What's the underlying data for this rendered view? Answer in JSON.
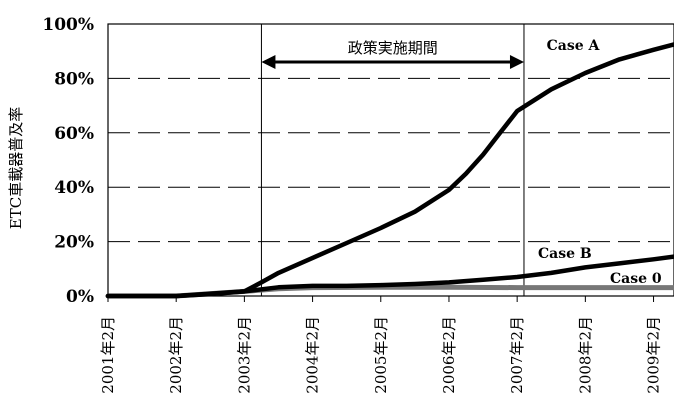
{
  "chart_data": {
    "type": "line",
    "ylabel": "ETC車載器普及率",
    "xlabel": "",
    "ylim": [
      0,
      100
    ],
    "y_ticks": [
      "0%",
      "20%",
      "40%",
      "60%",
      "80%",
      "100%"
    ],
    "x_ticks": [
      "2001年2月",
      "2002年2月",
      "2003年2月",
      "2004年2月",
      "2005年2月",
      "2006年2月",
      "2007年2月",
      "2008年2月",
      "2009年2月"
    ],
    "grid": "horizontal dashed",
    "x_unit": "year",
    "x_range": [
      2001.0,
      2009.3
    ],
    "policy_period": {
      "label": "政策実施期間",
      "start": 2003.25,
      "end": 2007.1
    },
    "series": [
      {
        "name": "Case A",
        "x": [
          2001.0,
          2002.0,
          2002.5,
          2003.0,
          2003.25,
          2003.5,
          2004.0,
          2004.5,
          2005.0,
          2005.5,
          2006.0,
          2006.25,
          2006.5,
          2006.75,
          2007.0,
          2007.25,
          2007.5,
          2008.0,
          2008.5,
          2009.0,
          2009.3
        ],
        "values": [
          0,
          0,
          0.7,
          1.7,
          5,
          8.5,
          14,
          19.5,
          25,
          31,
          39,
          45,
          52,
          60,
          68,
          72,
          76,
          82,
          87,
          90.5,
          92.5
        ]
      },
      {
        "name": "Case B",
        "x": [
          2001.0,
          2002.0,
          2003.0,
          2003.5,
          2004.0,
          2004.5,
          2005.0,
          2005.5,
          2006.0,
          2006.5,
          2007.0,
          2007.5,
          2008.0,
          2008.5,
          2009.0,
          2009.3
        ],
        "values": [
          0,
          0,
          1.7,
          3.2,
          3.7,
          3.7,
          4,
          4.4,
          5,
          6,
          7,
          8.5,
          10.5,
          12,
          13.5,
          14.5
        ]
      },
      {
        "name": "Case 0",
        "x": [
          2001.0,
          2002.0,
          2003.0,
          2003.5,
          2004.0,
          2005.0,
          2006.0,
          2007.0,
          2008.0,
          2009.0,
          2009.3
        ],
        "values": [
          0,
          0,
          1.7,
          2.7,
          3.1,
          3.2,
          3.2,
          3.1,
          3.1,
          3.1,
          3.1
        ]
      }
    ]
  }
}
